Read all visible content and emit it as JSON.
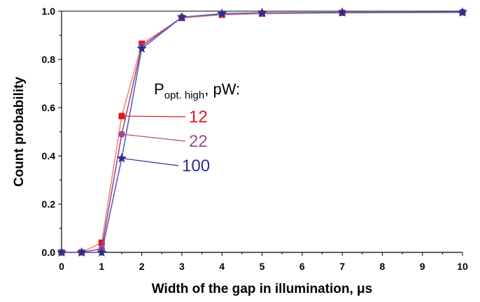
{
  "chart_data": {
    "type": "line",
    "xlabel": "Width of the gap in illumination, μs",
    "ylabel": "Count probability",
    "xlim": [
      0,
      10
    ],
    "ylim": [
      0,
      1.0
    ],
    "xticks": [
      0,
      1,
      2,
      3,
      4,
      5,
      6,
      7,
      8,
      9,
      10
    ],
    "xtick_labels": [
      "0",
      "1",
      "2",
      "3",
      "4",
      "5",
      "6",
      "7",
      "8",
      "9",
      "10"
    ],
    "yticks": [
      0,
      0.2,
      0.4,
      0.6,
      0.8,
      1.0
    ],
    "ytick_labels": [
      "0.0",
      "0.2",
      "0.4",
      "0.6",
      "0.8",
      "1.0"
    ],
    "grid": false,
    "legend": {
      "title_main": "P",
      "title_sub": "opt. high",
      "title_suffix": ", pW:",
      "placement": "center-left inside plot, labels connected to curves by leader lines"
    },
    "series": [
      {
        "name": "12",
        "color": "#e8141c",
        "line_color": "#f08a78",
        "marker": "square",
        "x": [
          0,
          0.5,
          1,
          1.5,
          2,
          3,
          4,
          5,
          7,
          10
        ],
        "y": [
          0,
          0,
          0.04,
          0.565,
          0.865,
          0.972,
          0.985,
          0.99,
          0.993,
          0.995
        ]
      },
      {
        "name": "22",
        "color": "#a04a8e",
        "line_color": "#a04a8e",
        "marker": "circle",
        "x": [
          0,
          0.5,
          1,
          1.5,
          2,
          3,
          4,
          5,
          7,
          10
        ],
        "y": [
          0,
          0,
          0.015,
          0.49,
          0.855,
          0.975,
          0.988,
          0.992,
          0.994,
          0.996
        ]
      },
      {
        "name": "100",
        "color": "#2a2e8c",
        "line_color": "#5b5fc0",
        "marker": "star",
        "x": [
          0,
          0.5,
          1,
          1.5,
          2,
          3,
          4,
          5,
          7,
          10
        ],
        "y": [
          0,
          0,
          0,
          0.39,
          0.845,
          0.975,
          0.99,
          0.993,
          0.995,
          0.995
        ]
      }
    ]
  }
}
